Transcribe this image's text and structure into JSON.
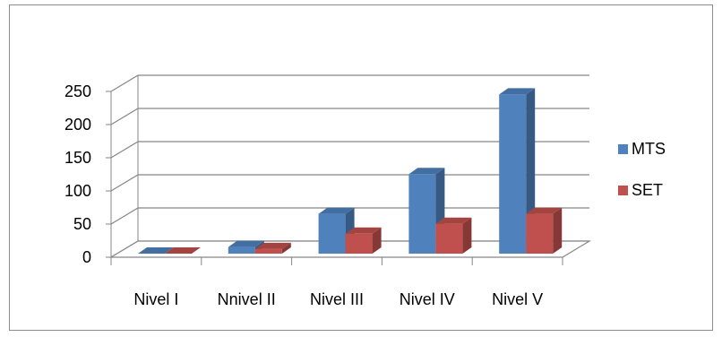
{
  "chart_data": {
    "type": "bar",
    "style": "3d-clustered-column",
    "categories": [
      "Nivel I",
      "Nnivel II",
      "Nivel III",
      "Nivel IV",
      "Nivel V"
    ],
    "series": [
      {
        "name": "MTS",
        "values": [
          0,
          10,
          60,
          120,
          240
        ],
        "color": "#4f81bd"
      },
      {
        "name": "SET",
        "values": [
          0,
          7,
          30,
          45,
          60
        ],
        "color": "#c0504d"
      }
    ],
    "ylim": [
      0,
      250
    ],
    "yticks": [
      "0",
      "50",
      "100",
      "150",
      "200",
      "250"
    ],
    "grid": true,
    "legend_position": "right"
  }
}
